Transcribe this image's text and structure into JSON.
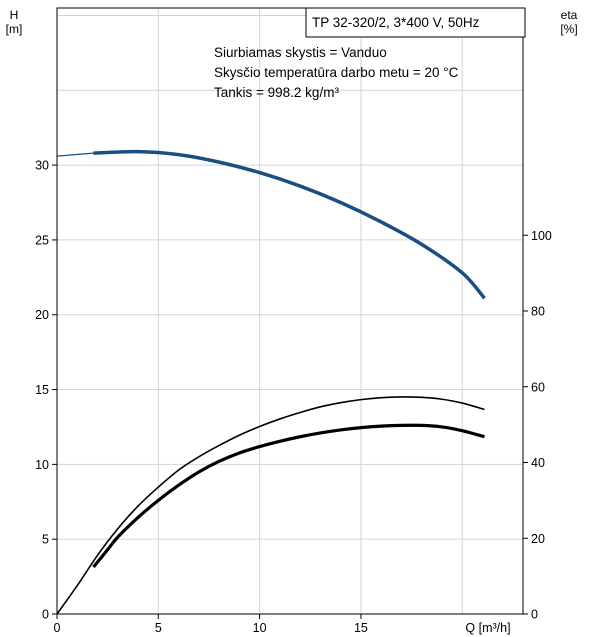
{
  "chart_data": {
    "type": "line",
    "model_label": "TP 32-320/2, 3*400 V, 50Hz",
    "info_lines": [
      "Siurbiamas skystis = Vanduo",
      "Skysčio temperatūra darbo metu = 20 °C",
      "Tankis = 998.2 kg/m³"
    ],
    "y_left_label": [
      "H",
      "[m]"
    ],
    "y_right_label": [
      "eta",
      "[%]"
    ],
    "x_label": "Q [m³/h]",
    "x_range": [
      0,
      23
    ],
    "y_left_range": [
      0,
      40.5
    ],
    "y_right_range": [
      0,
      160
    ],
    "x_ticks": [
      0,
      5,
      10,
      15
    ],
    "y_left_ticks": [
      0,
      5,
      10,
      15,
      20,
      25,
      30
    ],
    "y_right_ticks": [
      0,
      20,
      40,
      60,
      80,
      100
    ],
    "grid": true,
    "colors": {
      "head_curve": "#1a4f82",
      "efficiency_curve": "#000000",
      "grid": "#d4d4d4"
    },
    "series": [
      {
        "axis": "left",
        "style": "head",
        "extension": [
          [
            0,
            30.6
          ],
          [
            1.8,
            30.8
          ]
        ],
        "points": [
          [
            1.8,
            30.8
          ],
          [
            4,
            30.9
          ],
          [
            6,
            30.7
          ],
          [
            8,
            30.2
          ],
          [
            10,
            29.5
          ],
          [
            12,
            28.6
          ],
          [
            14,
            27.5
          ],
          [
            16,
            26.2
          ],
          [
            18,
            24.7
          ],
          [
            20,
            22.8
          ],
          [
            21.1,
            21.1
          ]
        ]
      },
      {
        "axis": "right",
        "style": "thin",
        "points": [
          [
            0,
            0
          ],
          [
            1,
            7.5
          ],
          [
            2,
            15.5
          ],
          [
            3,
            22.5
          ],
          [
            4,
            28.5
          ],
          [
            5,
            33.5
          ],
          [
            6,
            38
          ],
          [
            7,
            41.5
          ],
          [
            8,
            44.5
          ],
          [
            9,
            47.2
          ],
          [
            10,
            49.5
          ],
          [
            11,
            51.5
          ],
          [
            12,
            53.2
          ],
          [
            13,
            54.7
          ],
          [
            14,
            55.8
          ],
          [
            15,
            56.6
          ],
          [
            16,
            57.1
          ],
          [
            17,
            57.3
          ],
          [
            18,
            57.2
          ],
          [
            19,
            56.7
          ],
          [
            20,
            55.7
          ],
          [
            21.1,
            54
          ]
        ]
      },
      {
        "axis": "right",
        "style": "thick",
        "points": [
          [
            1.8,
            12.4
          ],
          [
            2.5,
            17
          ],
          [
            3,
            20.3
          ],
          [
            4,
            25.5
          ],
          [
            5,
            30
          ],
          [
            6,
            34
          ],
          [
            7,
            37.5
          ],
          [
            8,
            40.3
          ],
          [
            9,
            42.5
          ],
          [
            10,
            44.2
          ],
          [
            11,
            45.6
          ],
          [
            12,
            46.8
          ],
          [
            13,
            47.8
          ],
          [
            14,
            48.6
          ],
          [
            15,
            49.2
          ],
          [
            16,
            49.6
          ],
          [
            17,
            49.8
          ],
          [
            18,
            49.8
          ],
          [
            19,
            49.4
          ],
          [
            20,
            48.4
          ],
          [
            21.1,
            46.8
          ]
        ]
      }
    ]
  }
}
